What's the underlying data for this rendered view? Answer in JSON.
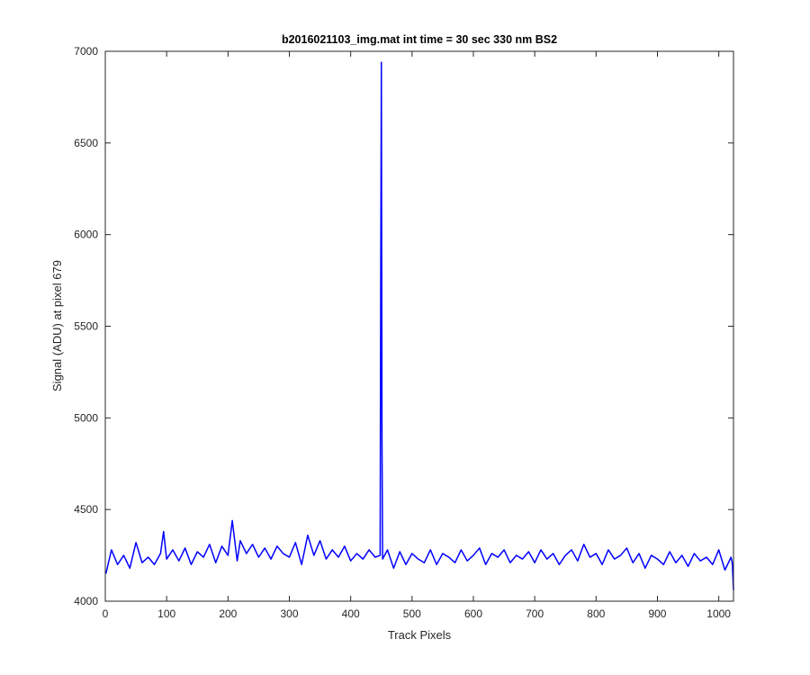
{
  "chart_data": {
    "type": "line",
    "title": "b2016021103_img.mat int time = 30 sec  330 nm BS2",
    "xlabel": "Track Pixels",
    "ylabel": "Signal (ADU) at pixel 679",
    "xlim": [
      0,
      1024
    ],
    "ylim": [
      4000,
      7000
    ],
    "xticks": [
      0,
      100,
      200,
      300,
      400,
      500,
      600,
      700,
      800,
      900,
      1000
    ],
    "yticks": [
      4000,
      4500,
      5000,
      5500,
      6000,
      6500,
      7000
    ],
    "grid": false,
    "line_color": "#0000ff",
    "series": [
      {
        "x": [
          1,
          10,
          20,
          30,
          40,
          50,
          60,
          70,
          80,
          90,
          95,
          100,
          110,
          120,
          130,
          140,
          150,
          160,
          170,
          180,
          190,
          200,
          207,
          215,
          220,
          230,
          240,
          250,
          260,
          270,
          280,
          290,
          300,
          310,
          320,
          330,
          340,
          350,
          360,
          370,
          380,
          390,
          400,
          410,
          420,
          430,
          440,
          448,
          449,
          450,
          451,
          452,
          460,
          470,
          480,
          490,
          500,
          510,
          520,
          530,
          540,
          550,
          560,
          570,
          580,
          590,
          600,
          610,
          620,
          630,
          640,
          650,
          660,
          670,
          680,
          690,
          700,
          710,
          720,
          730,
          740,
          750,
          760,
          770,
          780,
          790,
          800,
          810,
          820,
          830,
          840,
          850,
          860,
          870,
          880,
          890,
          900,
          910,
          920,
          930,
          940,
          950,
          960,
          970,
          980,
          990,
          1000,
          1010,
          1020,
          1022,
          1024
        ],
        "y": [
          4150,
          4280,
          4200,
          4250,
          4180,
          4320,
          4210,
          4240,
          4200,
          4260,
          4380,
          4230,
          4280,
          4220,
          4290,
          4200,
          4270,
          4240,
          4310,
          4210,
          4300,
          4250,
          4440,
          4220,
          4330,
          4260,
          4310,
          4240,
          4290,
          4230,
          4300,
          4260,
          4240,
          4320,
          4200,
          4360,
          4250,
          4330,
          4230,
          4280,
          4240,
          4300,
          4220,
          4260,
          4230,
          4280,
          4240,
          4250,
          5800,
          6940,
          4900,
          4230,
          4280,
          4180,
          4270,
          4200,
          4260,
          4230,
          4210,
          4280,
          4200,
          4260,
          4240,
          4210,
          4280,
          4220,
          4250,
          4290,
          4200,
          4260,
          4240,
          4280,
          4210,
          4250,
          4230,
          4270,
          4210,
          4280,
          4230,
          4260,
          4200,
          4250,
          4280,
          4220,
          4310,
          4240,
          4260,
          4200,
          4280,
          4230,
          4250,
          4290,
          4210,
          4260,
          4180,
          4250,
          4230,
          4200,
          4270,
          4210,
          4250,
          4190,
          4260,
          4220,
          4240,
          4200,
          4280,
          4170,
          4240,
          4210,
          4060
        ]
      }
    ]
  }
}
